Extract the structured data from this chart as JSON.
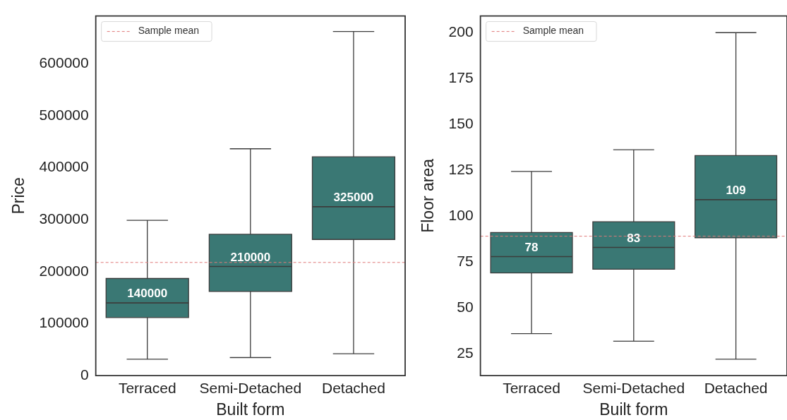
{
  "chart_data": [
    {
      "type": "box",
      "xlabel": "Built form",
      "ylabel": "Price",
      "categories": [
        "Terraced",
        "Semi-Detached",
        "Detached"
      ],
      "ylim": [
        0,
        692000
      ],
      "yticks": [
        0,
        100000,
        200000,
        300000,
        400000,
        500000,
        600000
      ],
      "grid": false,
      "legend": "top left",
      "series": [
        {
          "color": "#3a7874",
          "value_labels": [
            "140000",
            "210000",
            "325000"
          ],
          "boxes": [
            {
              "low": 31800,
              "q1": 111800,
              "median": 140000,
              "q3": 187000,
              "high": 298800
            },
            {
              "low": 34900,
              "q1": 162000,
              "median": 210000,
              "q3": 272000,
              "high": 436500
            },
            {
              "low": 42100,
              "q1": 262000,
              "median": 325000,
              "q3": 421000,
              "high": 662000
            }
          ]
        }
      ],
      "ref_lines": [
        {
          "axis": "y",
          "value": 217800,
          "label": "Sample mean",
          "color": "#e07a7a",
          "line_style": "dashed"
        }
      ]
    },
    {
      "type": "box",
      "xlabel": "Built form",
      "ylabel": "Floor area",
      "categories": [
        "Terraced",
        "Semi-Detached",
        "Detached"
      ],
      "ylim": [
        13.1,
        209.1
      ],
      "yticks": [
        25,
        50,
        75,
        100,
        125,
        150,
        175,
        200
      ],
      "grid": false,
      "legend": "top left",
      "series": [
        {
          "color": "#3a7874",
          "value_labels": [
            "78",
            "83",
            "109"
          ],
          "boxes": [
            {
              "low": 36.0,
              "q1": 69.1,
              "median": 78,
              "q3": 91.1,
              "high": 124.4
            },
            {
              "low": 31.9,
              "q1": 71.1,
              "median": 83,
              "q3": 97.0,
              "high": 136.2
            },
            {
              "low": 22.1,
              "q1": 88.2,
              "median": 109,
              "q3": 133.0,
              "high": 200
            }
          ]
        }
      ],
      "ref_lines": [
        {
          "axis": "y",
          "value": 89.1,
          "label": "Sample mean",
          "color": "#e07a7a",
          "line_style": "dashed"
        }
      ]
    }
  ]
}
